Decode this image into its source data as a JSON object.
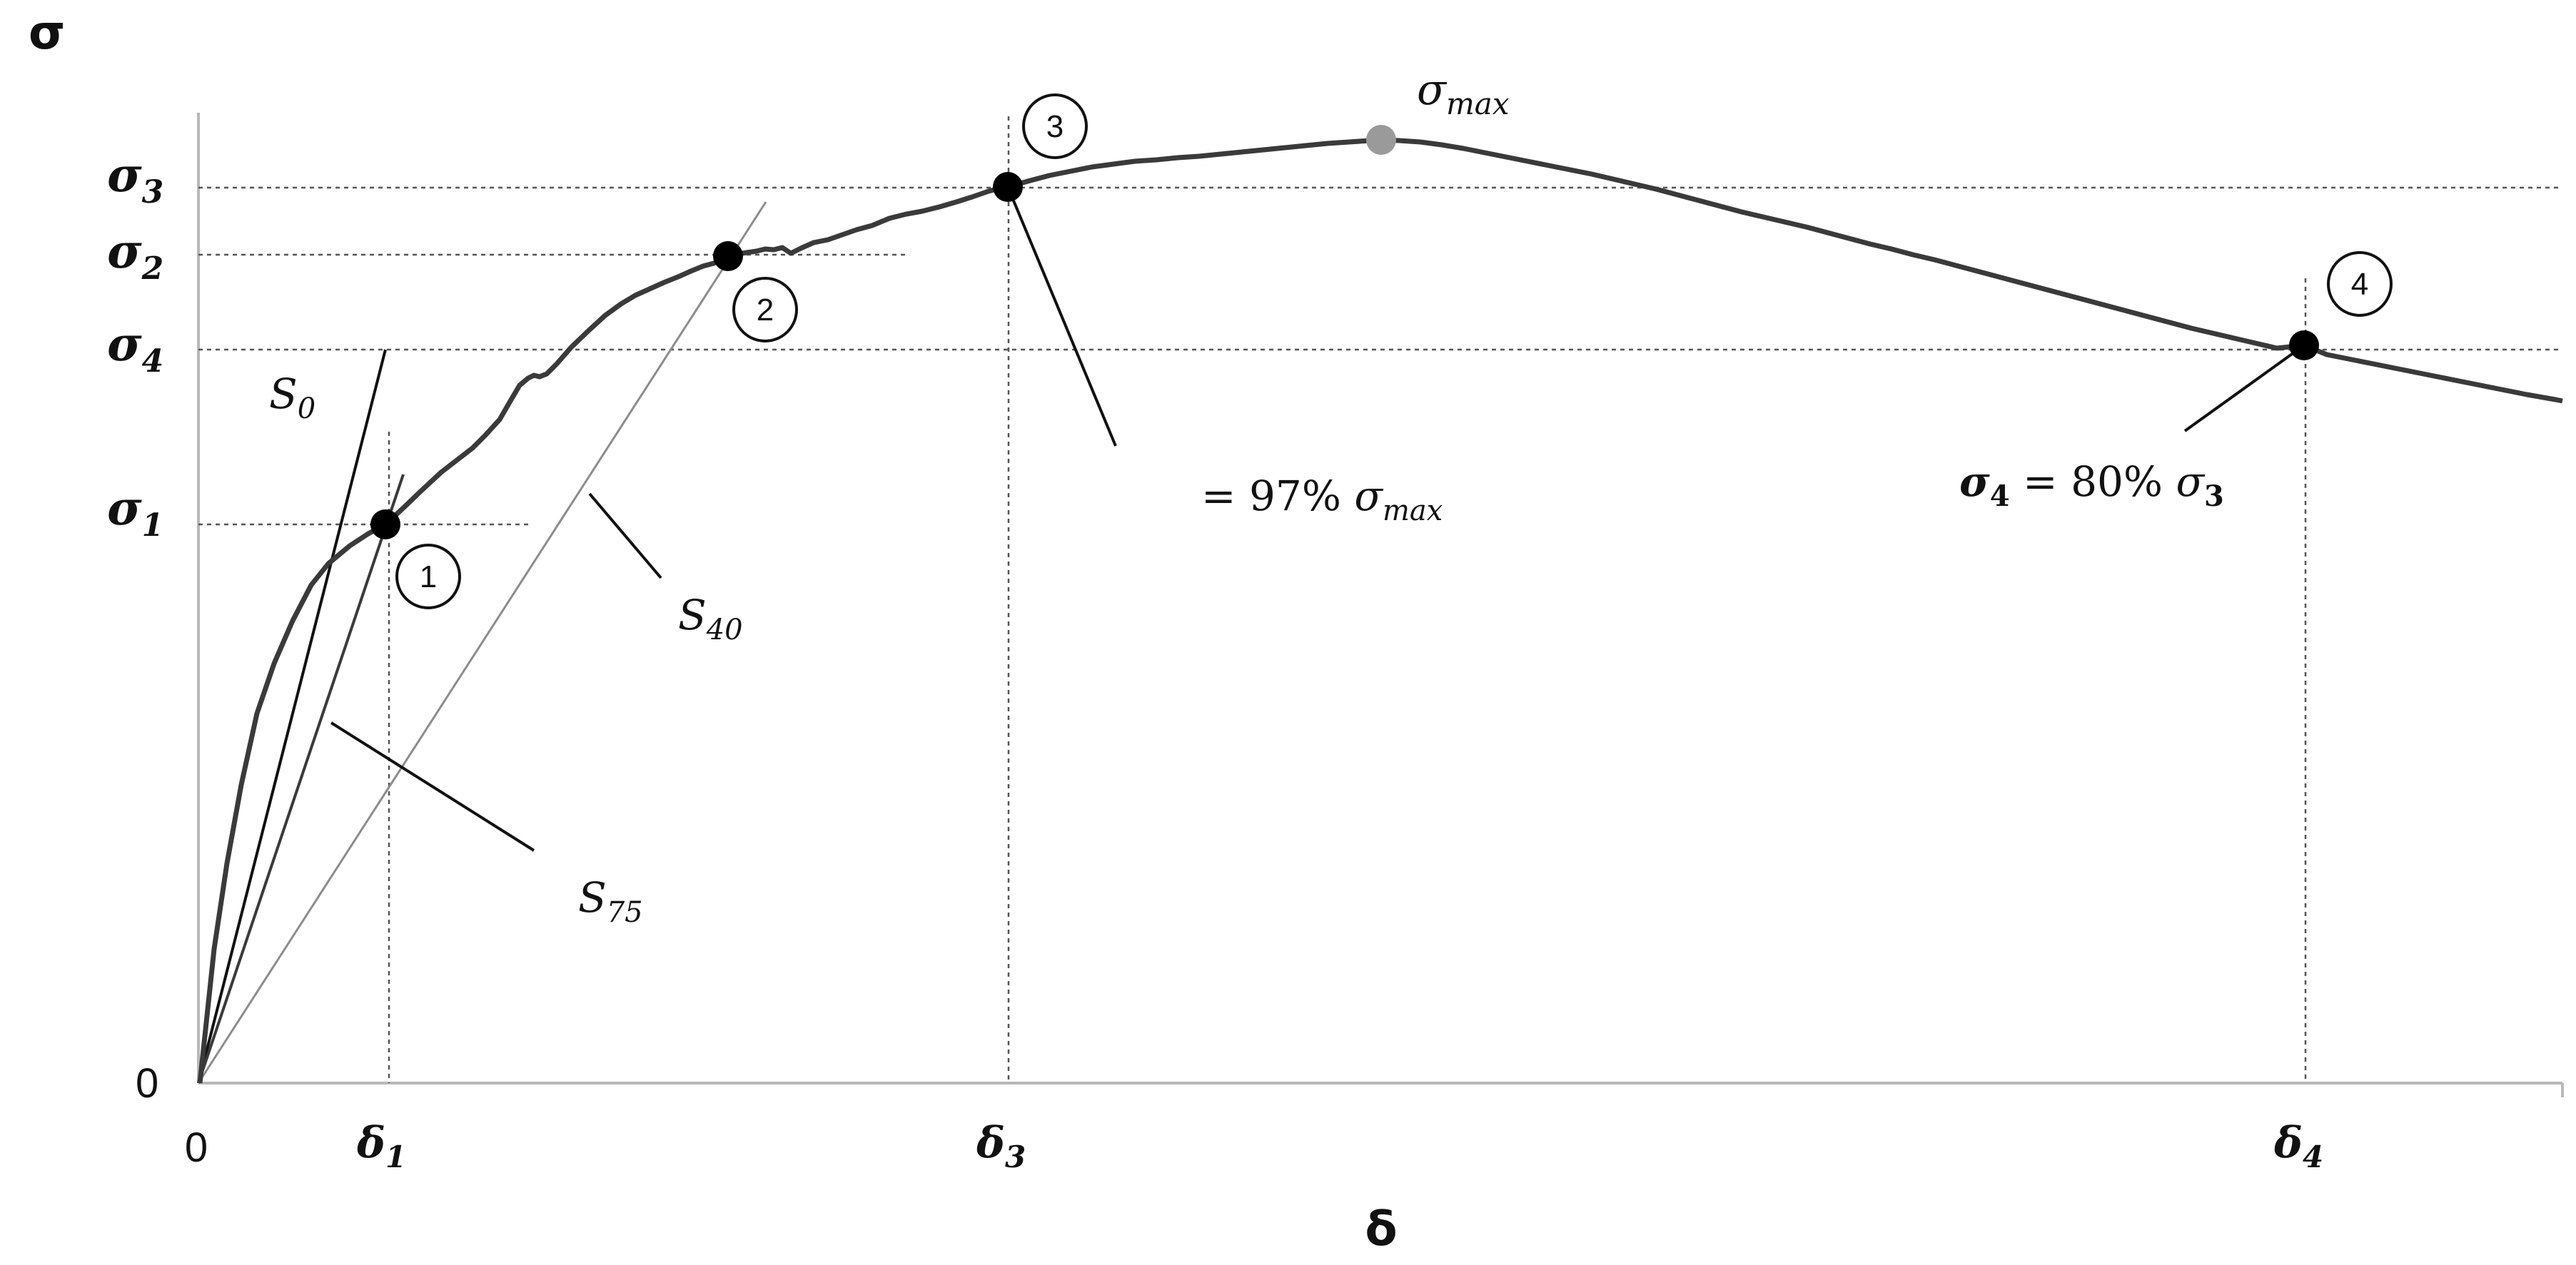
{
  "axes": {
    "y_title": "σ",
    "x_title": "δ",
    "origin_x_label": "0",
    "origin_y_label": "0"
  },
  "y_labels": {
    "sigma3": {
      "base": "σ",
      "sub": "3"
    },
    "sigma2": {
      "base": "σ",
      "sub": "2"
    },
    "sigma4": {
      "base": "σ",
      "sub": "4"
    },
    "sigma1": {
      "base": "σ",
      "sub": "1"
    }
  },
  "x_labels": {
    "delta1": {
      "base": "δ",
      "sub": "1"
    },
    "delta3": {
      "base": "δ",
      "sub": "3"
    },
    "delta4": {
      "base": "δ",
      "sub": "4"
    }
  },
  "points": {
    "p1": "1",
    "p2": "2",
    "p3": "3",
    "p4": "4",
    "max": {
      "base": "σ",
      "sub": "max"
    }
  },
  "slopes": {
    "s0": {
      "base": "S",
      "sub": "0"
    },
    "s40": {
      "base": "S",
      "sub": "40"
    },
    "s75": {
      "base": "S",
      "sub": "75"
    }
  },
  "annotations": {
    "p3_note": {
      "prefix": "= 97% ",
      "base": "σ",
      "sub": "max"
    },
    "p4_note": {
      "lhs_base": "σ",
      "lhs_sub": "4",
      "mid": " = 80% ",
      "rhs_base": "σ",
      "rhs_sub": "3"
    }
  },
  "colors": {
    "curve": "#3a3a3a",
    "axis": "#b8b8b8",
    "guide": "#6a6a6a",
    "point": "#000000",
    "max_point": "#9a9a9a",
    "secant_light": "#8c8c8c"
  }
}
